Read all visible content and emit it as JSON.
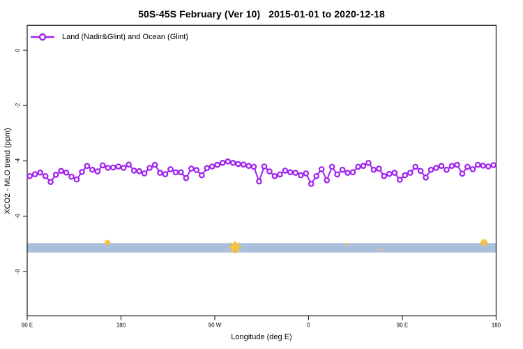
{
  "title": "50S-45S February (Ver 10)   2015-01-01 to 2020-12-18",
  "legend": {
    "label": "Land (Nadir&Glint) and Ocean (Glint)"
  },
  "colors": {
    "series": "#A020F0",
    "marker_fill": "#FFFFFF",
    "band": "#A9BFDC",
    "flag": "#F5C142",
    "frame": "#2A2A2A",
    "text": "#000000",
    "background": "#FFFFFF"
  },
  "chart_data": {
    "type": "line",
    "title": "50S-45S February (Ver 10)   2015-01-01 to 2020-12-18",
    "xlabel": "Longitude (deg E)",
    "ylabel": "XCO2 - MLO trend (ppm)",
    "xlim": [
      90,
      540
    ],
    "ylim": [
      -9.6,
      0.9
    ],
    "grid": false,
    "legend_position": "top-left",
    "xticks": [
      {
        "value": 90,
        "label": "90 E"
      },
      {
        "value": 180,
        "label": "180"
      },
      {
        "value": 270,
        "label": "90 W"
      },
      {
        "value": 360,
        "label": "0"
      },
      {
        "value": 450,
        "label": "90 E"
      },
      {
        "value": 540,
        "label": "180"
      }
    ],
    "yticks": [
      {
        "value": 0,
        "label": "0"
      },
      {
        "value": -2,
        "label": "-2"
      },
      {
        "value": -4,
        "label": "-4"
      },
      {
        "value": -6,
        "label": "-6"
      },
      {
        "value": -8,
        "label": "-8"
      }
    ],
    "band": {
      "name": "no-data-band",
      "value_top": -6.97,
      "value_bottom": -7.31
    },
    "flags": [
      {
        "x": 167.0,
        "y": -6.95,
        "size": "small"
      },
      {
        "x": 289.5,
        "y": -7.12,
        "size": "large"
      },
      {
        "x": 396.5,
        "y": -7.02,
        "size": "dot"
      },
      {
        "x": 428.5,
        "y": -7.22,
        "size": "dot"
      },
      {
        "x": 528.3,
        "y": -6.95,
        "size": "medium"
      }
    ],
    "series": [
      {
        "name": "Land (Nadir&Glint) and Ocean (Glint)",
        "marker": "open-circle",
        "x": [
          92.5,
          97.5,
          102.5,
          107.5,
          112.5,
          117.5,
          122.5,
          127.5,
          132.5,
          137.5,
          142.5,
          147.5,
          152.5,
          157.5,
          162.5,
          167.5,
          172.5,
          177.5,
          182.5,
          187.5,
          192.5,
          197.5,
          202.5,
          207.5,
          212.5,
          217.5,
          222.5,
          227.5,
          232.5,
          237.5,
          242.5,
          247.5,
          252.5,
          257.5,
          262.5,
          267.5,
          272.5,
          277.5,
          282.5,
          287.5,
          292.5,
          297.5,
          302.5,
          307.5,
          312.5,
          317.5,
          322.5,
          327.5,
          332.5,
          337.5,
          342.5,
          347.5,
          352.5,
          357.5,
          362.5,
          367.5,
          372.5,
          377.5,
          382.5,
          387.5,
          392.5,
          397.5,
          402.5,
          407.5,
          412.5,
          417.5,
          422.5,
          427.5,
          432.5,
          437.5,
          442.5,
          447.5,
          452.5,
          457.5,
          462.5,
          467.5,
          472.5,
          477.5,
          482.5,
          487.5,
          492.5,
          497.5,
          502.5,
          507.5,
          512.5,
          517.5,
          522.5,
          527.5,
          532.5,
          537.5
        ],
        "y": [
          -4.55,
          -4.48,
          -4.42,
          -4.55,
          -4.76,
          -4.5,
          -4.36,
          -4.42,
          -4.57,
          -4.67,
          -4.4,
          -4.18,
          -4.32,
          -4.38,
          -4.16,
          -4.25,
          -4.24,
          -4.2,
          -4.25,
          -4.13,
          -4.35,
          -4.37,
          -4.45,
          -4.25,
          -4.14,
          -4.43,
          -4.48,
          -4.3,
          -4.41,
          -4.41,
          -4.62,
          -4.28,
          -4.33,
          -4.52,
          -4.26,
          -4.2,
          -4.14,
          -4.07,
          -4.02,
          -4.07,
          -4.11,
          -4.13,
          -4.18,
          -4.21,
          -4.74,
          -4.2,
          -4.38,
          -4.55,
          -4.49,
          -4.35,
          -4.41,
          -4.43,
          -4.52,
          -4.45,
          -4.83,
          -4.55,
          -4.3,
          -4.7,
          -4.21,
          -4.49,
          -4.32,
          -4.43,
          -4.41,
          -4.21,
          -4.18,
          -4.07,
          -4.32,
          -4.28,
          -4.55,
          -4.47,
          -4.43,
          -4.68,
          -4.52,
          -4.43,
          -4.21,
          -4.36,
          -4.6,
          -4.32,
          -4.25,
          -4.18,
          -4.32,
          -4.18,
          -4.14,
          -4.46,
          -4.21,
          -4.3,
          -4.14,
          -4.17,
          -4.2,
          -4.15
        ]
      }
    ]
  }
}
